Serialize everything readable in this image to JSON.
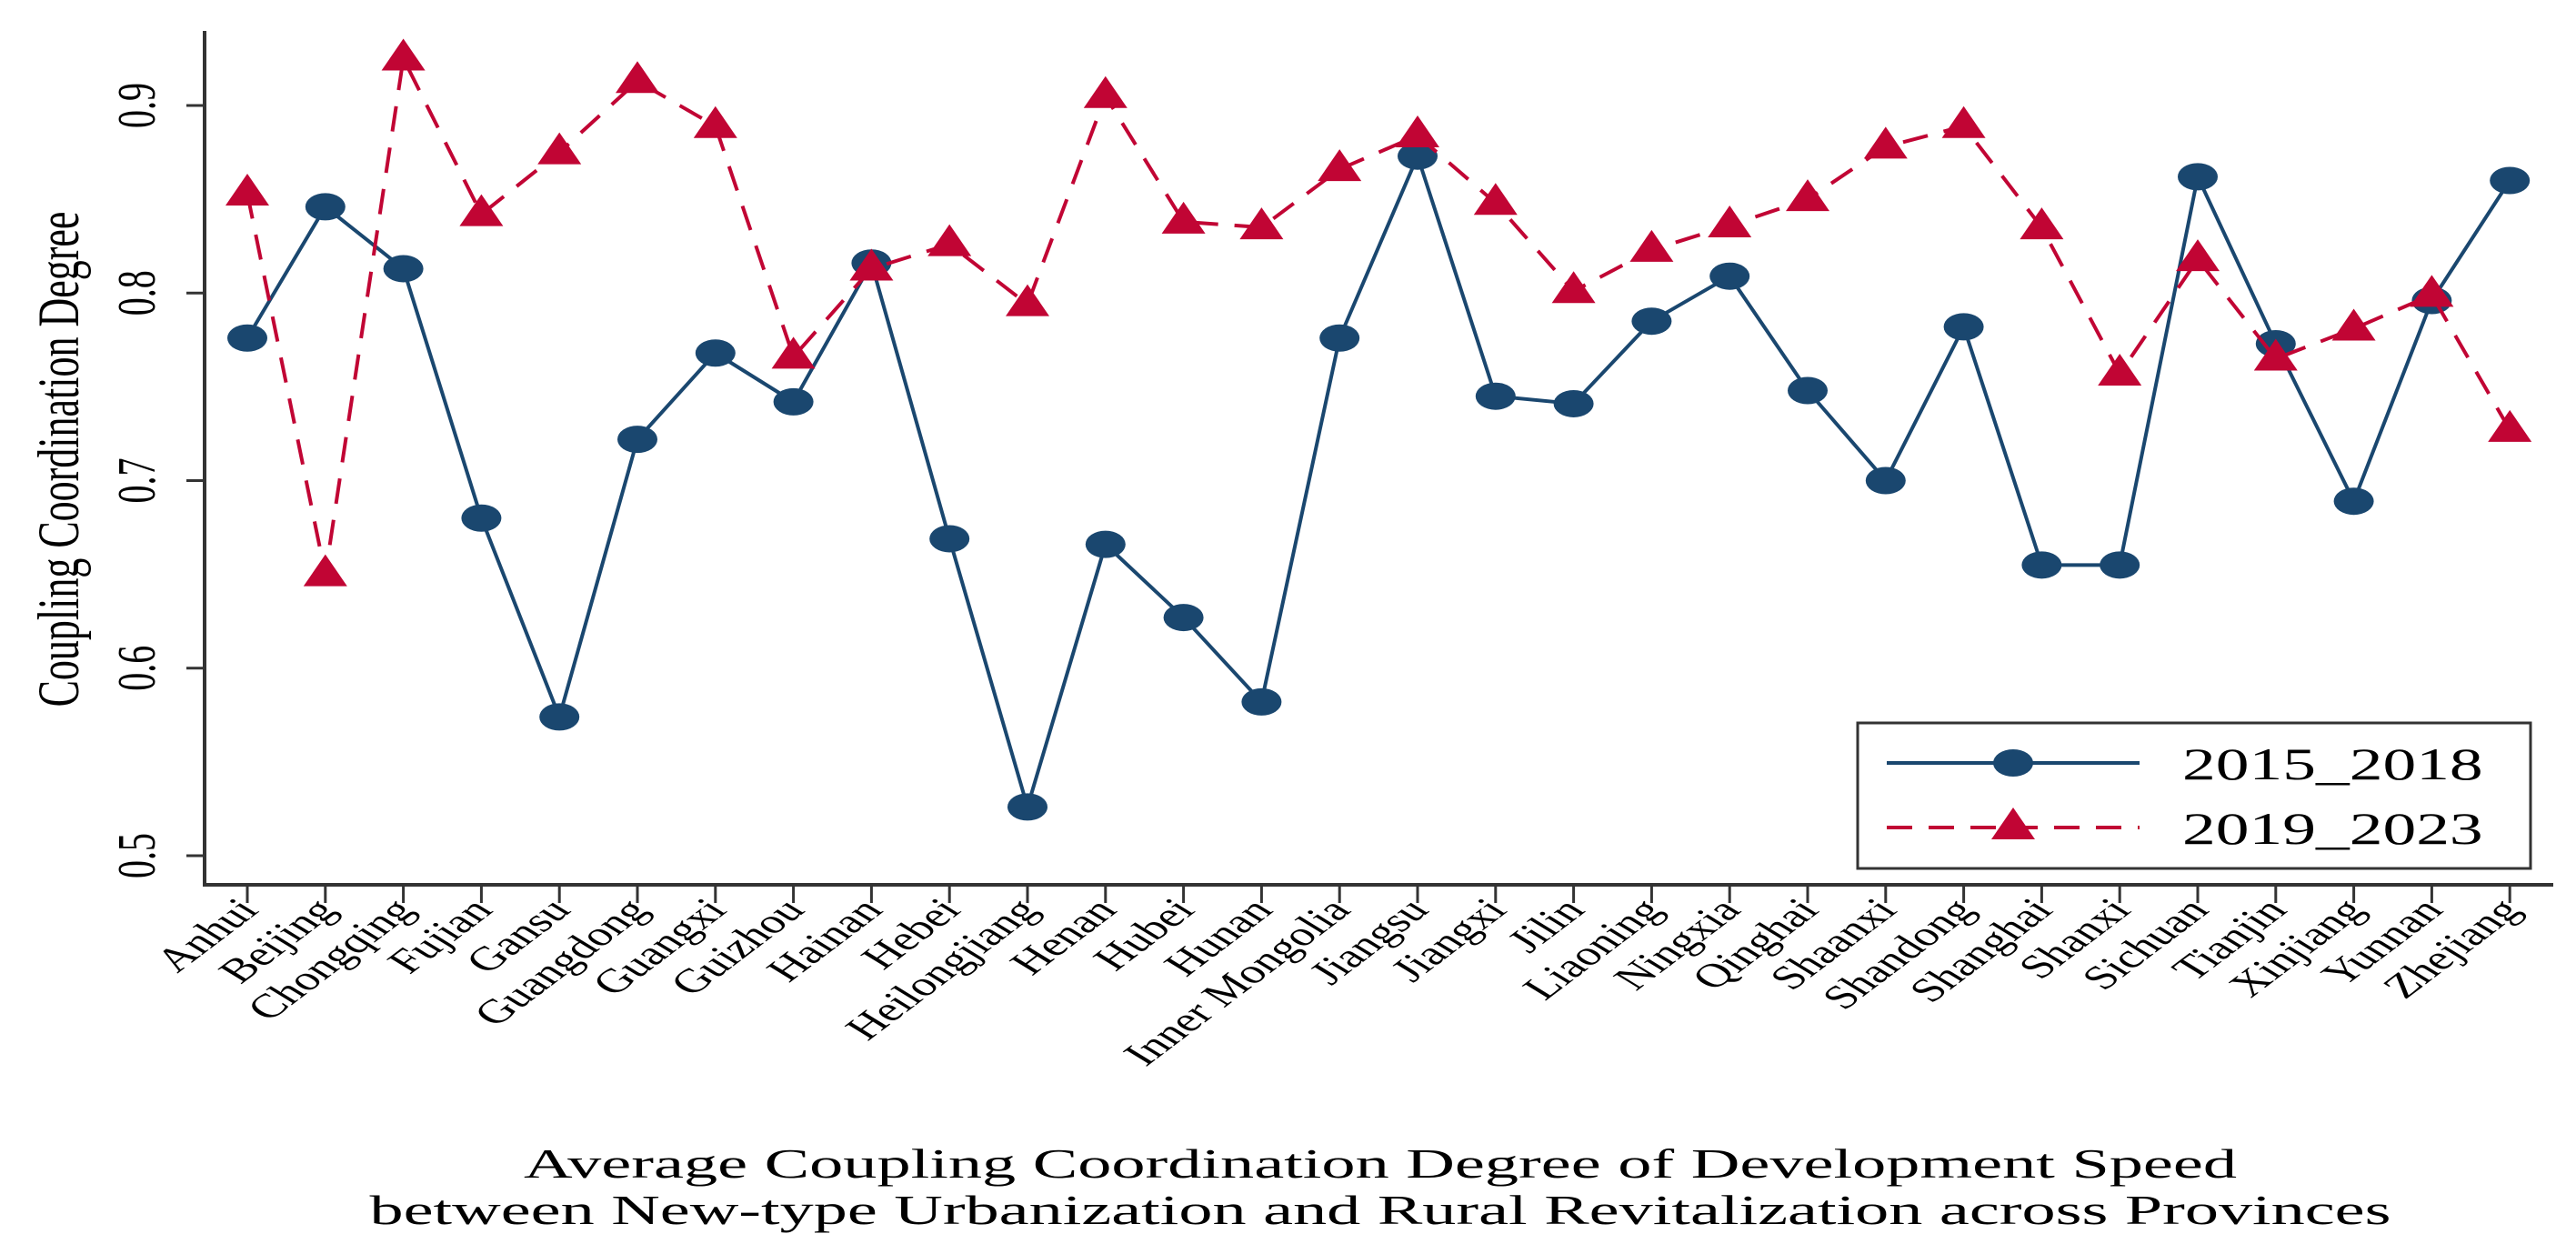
{
  "chart_data": {
    "type": "line",
    "title": "Average Coupling Coordination Degree of Development Speed between New-type Urbanization and Rural Revitalization across Provinces",
    "xlabel_lines": [
      "Average Coupling Coordination Degree of Development Speed",
      "between New-type Urbanization and Rural Revitalization across Provinces"
    ],
    "ylabel": "Coupling Coordination Degree",
    "ylim": [
      0.5,
      0.94
    ],
    "yticks": [
      "0.5",
      "0.6",
      "0.7",
      "0.8",
      "0.9"
    ],
    "grid": false,
    "legend_position": "bottom-right",
    "categories": [
      "Anhui",
      "Beijing",
      "Chongqing",
      "Fujian",
      "Gansu",
      "Guangdong",
      "Guangxi",
      "Guizhou",
      "Hainan",
      "Hebei",
      "Heilongjiang",
      "Henan",
      "Hubei",
      "Hunan",
      "Inner Mongolia",
      "Jiangsu",
      "Jiangxi",
      "Jilin",
      "Liaoning",
      "Ningxia",
      "Qinghai",
      "Shaanxi",
      "Shandong",
      "Shanghai",
      "Shanxi",
      "Sichuan",
      "Tianjin",
      "Xinjiang",
      "Yunnan",
      "Zhejiang"
    ],
    "series": [
      {
        "name": "2015_2018",
        "color": "#1a476f",
        "marker": "circle",
        "dash": "solid",
        "values": [
          0.776,
          0.846,
          0.813,
          0.68,
          0.574,
          0.722,
          0.768,
          0.742,
          0.816,
          0.669,
          0.526,
          0.666,
          0.627,
          0.582,
          0.776,
          0.873,
          0.745,
          0.741,
          0.785,
          0.809,
          0.748,
          0.7,
          0.782,
          0.655,
          0.655,
          0.862,
          0.773,
          0.689,
          0.796,
          0.86
        ]
      },
      {
        "name": "2019_2023",
        "color": "#c10534",
        "marker": "triangle",
        "dash": "dashed",
        "values": [
          0.853,
          0.65,
          0.925,
          0.842,
          0.875,
          0.913,
          0.889,
          0.766,
          0.813,
          0.826,
          0.794,
          0.905,
          0.838,
          0.835,
          0.866,
          0.884,
          0.848,
          0.801,
          0.823,
          0.836,
          0.85,
          0.878,
          0.889,
          0.835,
          0.757,
          0.818,
          0.765,
          0.781,
          0.799,
          0.727
        ]
      }
    ]
  }
}
